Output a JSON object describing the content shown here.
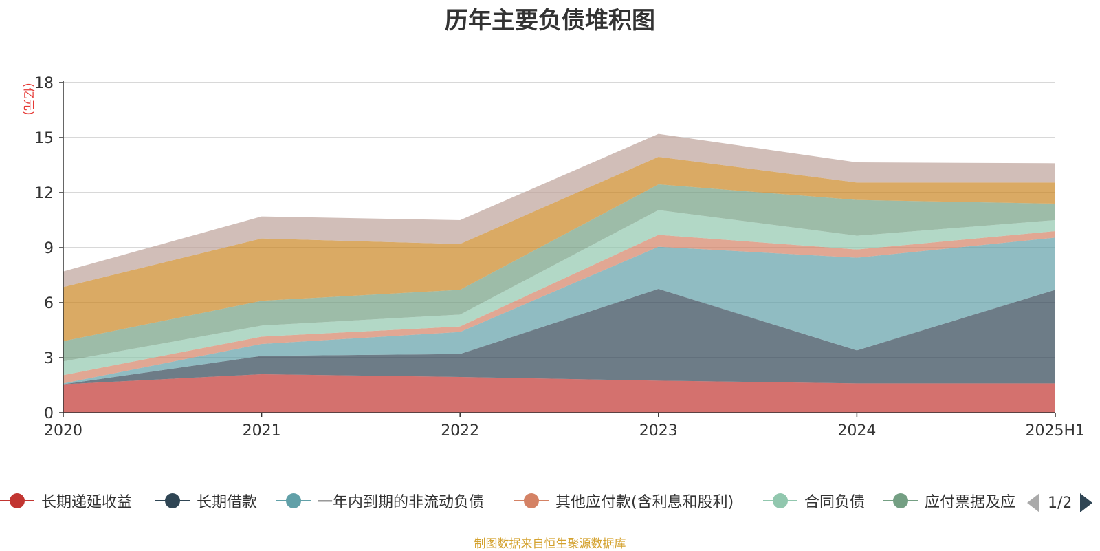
{
  "chart_data": {
    "type": "area",
    "stacked": true,
    "title": "历年主要负债堆积图",
    "ylabel": "(亿元)",
    "ylim": [
      0,
      18
    ],
    "yticks": [
      0,
      3,
      6,
      9,
      12,
      15,
      18
    ],
    "categories": [
      "2020",
      "2021",
      "2022",
      "2023",
      "2024",
      "2025H1"
    ],
    "grid": true,
    "legend_position": "bottom",
    "series": [
      {
        "name": "长期递延收益",
        "color": "#c23531",
        "values": [
          1.55,
          2.1,
          1.95,
          1.75,
          1.6,
          1.6
        ]
      },
      {
        "name": "长期借款",
        "color": "#2f4554",
        "values": [
          0.0,
          1.0,
          1.25,
          5.0,
          1.8,
          5.1
        ]
      },
      {
        "name": "一年内到期的非流动负债",
        "color": "#61a0a8",
        "values": [
          0.05,
          0.65,
          1.2,
          2.3,
          5.05,
          2.85
        ]
      },
      {
        "name": "其他应付款(含利息和股利)",
        "color": "#d48265",
        "values": [
          0.45,
          0.4,
          0.3,
          0.65,
          0.45,
          0.35
        ]
      },
      {
        "name": "合同负债",
        "color": "#91c7ae",
        "values": [
          0.75,
          0.6,
          0.65,
          1.35,
          0.75,
          0.6
        ]
      },
      {
        "name": "应付票据及应付账款",
        "color": "#749f83",
        "values": [
          1.1,
          1.35,
          1.35,
          1.4,
          1.95,
          0.9
        ]
      },
      {
        "name": "",
        "color": "#ca8622",
        "values": [
          2.95,
          3.4,
          2.5,
          1.5,
          0.95,
          1.15
        ]
      },
      {
        "name": "",
        "color": "#bda29a",
        "values": [
          0.85,
          1.2,
          1.3,
          1.25,
          1.1,
          1.05
        ]
      }
    ],
    "legend_visible_count": 6,
    "legend_display_labels": [
      "长期递延收益",
      "长期借款",
      "一年内到期的非流动负债",
      "其他应付款(含利息和股利)",
      "合同负债",
      "应付票据及应"
    ],
    "legend_page": "1/2"
  },
  "source_note": "制图数据来自恒生聚源数据库"
}
